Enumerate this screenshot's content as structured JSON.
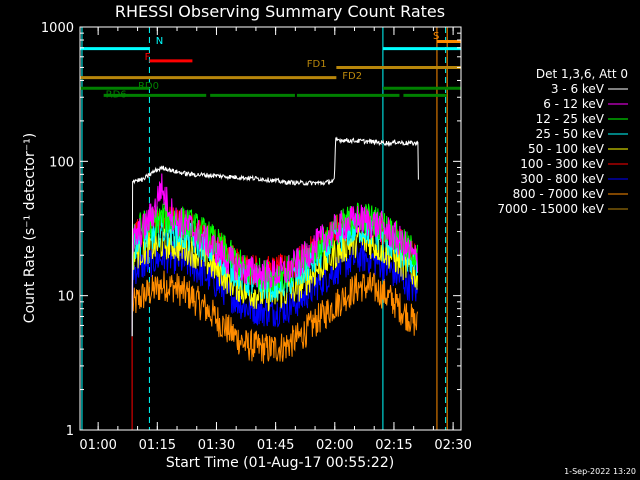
{
  "chart_data": {
    "type": "line",
    "title": "RHESSI Observing Summary Count Rates",
    "xlabel": "Start Time (01-Aug-17 00:55:22)",
    "ylabel": "Count Rate (s⁻¹ detector⁻¹)",
    "x_axis": {
      "unit": "minutes after 01-Aug-17 00:55:22",
      "range": [
        0,
        96.6
      ],
      "ticks": [
        {
          "v": 4.6,
          "label": "01:00"
        },
        {
          "v": 19.6,
          "label": "01:15"
        },
        {
          "v": 34.6,
          "label": "01:30"
        },
        {
          "v": 49.6,
          "label": "01:45"
        },
        {
          "v": 64.6,
          "label": "02:00"
        },
        {
          "v": 79.6,
          "label": "02:15"
        },
        {
          "v": 94.6,
          "label": "02:30"
        }
      ]
    },
    "y_axis": {
      "scale": "log",
      "range": [
        1,
        1000
      ],
      "ticks": [
        {
          "v": 1,
          "label": "1"
        },
        {
          "v": 10,
          "label": "10"
        },
        {
          "v": 100,
          "label": "100"
        },
        {
          "v": 1000,
          "label": "1000"
        }
      ]
    },
    "legend_header": "Det 1,3,6, Att 0",
    "legend_placement": "right",
    "series": [
      {
        "name": "3 - 6 keV",
        "color": "#ffffff",
        "points": [
          [
            13.2,
            5
          ],
          [
            13.3,
            72
          ],
          [
            16,
            73
          ],
          [
            17,
            77
          ],
          [
            19,
            85
          ],
          [
            21,
            90
          ],
          [
            24,
            84
          ],
          [
            28,
            80
          ],
          [
            32,
            79
          ],
          [
            40,
            76
          ],
          [
            46,
            74
          ],
          [
            52,
            70
          ],
          [
            56,
            69
          ],
          [
            62,
            69
          ],
          [
            64.5,
            72
          ],
          [
            64.8,
            145
          ],
          [
            72,
            141
          ],
          [
            78,
            137
          ],
          [
            79,
            136
          ],
          [
            80,
            140
          ],
          [
            82,
            137
          ],
          [
            85.7,
            136
          ],
          [
            85.8,
            76
          ]
        ]
      },
      {
        "name": "6 - 12 keV",
        "color": "#ff00ff",
        "points": [
          [
            13.2,
            5
          ],
          [
            13.4,
            26
          ],
          [
            16,
            31
          ],
          [
            19,
            44
          ],
          [
            20.5,
            66
          ],
          [
            22,
            50
          ],
          [
            24,
            37
          ],
          [
            28,
            32
          ],
          [
            33,
            24
          ],
          [
            38,
            18
          ],
          [
            42,
            15.5
          ],
          [
            48,
            14.2
          ],
          [
            52,
            15
          ],
          [
            56,
            18
          ],
          [
            60,
            24
          ],
          [
            64,
            30
          ],
          [
            68,
            35
          ],
          [
            71,
            37
          ],
          [
            74,
            35
          ],
          [
            77,
            32
          ],
          [
            80,
            27
          ],
          [
            82,
            24
          ],
          [
            85.7,
            18
          ]
        ]
      },
      {
        "name": "12 - 25 keV",
        "color": "#00ff00",
        "points": [
          [
            13.2,
            5
          ],
          [
            13.4,
            30
          ],
          [
            16,
            33
          ],
          [
            19,
            36
          ],
          [
            21,
            38
          ],
          [
            24,
            37
          ],
          [
            28,
            34
          ],
          [
            33,
            27
          ],
          [
            38,
            20
          ],
          [
            42,
            15.5
          ],
          [
            48,
            14
          ],
          [
            52,
            14.8
          ],
          [
            56,
            17.5
          ],
          [
            60,
            23
          ],
          [
            64,
            30
          ],
          [
            68,
            36
          ],
          [
            71,
            39
          ],
          [
            74,
            37
          ],
          [
            77,
            33
          ],
          [
            80,
            28
          ],
          [
            82,
            24
          ],
          [
            85.7,
            20
          ]
        ]
      },
      {
        "name": "25 - 50 keV",
        "color": "#00ffff",
        "points": [
          [
            13.2,
            5
          ],
          [
            13.4,
            24
          ],
          [
            16,
            27
          ],
          [
            19,
            29
          ],
          [
            21,
            31
          ],
          [
            24,
            30
          ],
          [
            28,
            27
          ],
          [
            33,
            22
          ],
          [
            38,
            16.5
          ],
          [
            42,
            13
          ],
          [
            48,
            11.8
          ],
          [
            52,
            12.5
          ],
          [
            56,
            14.5
          ],
          [
            60,
            19
          ],
          [
            64,
            25
          ],
          [
            68,
            30
          ],
          [
            71,
            32
          ],
          [
            74,
            30
          ],
          [
            77,
            27
          ],
          [
            80,
            23
          ],
          [
            82,
            20
          ],
          [
            85.7,
            17
          ]
        ]
      },
      {
        "name": "50 - 100 keV",
        "color": "#ffff00",
        "points": [
          [
            13.2,
            5
          ],
          [
            13.4,
            20
          ],
          [
            16,
            22
          ],
          [
            19,
            23.5
          ],
          [
            21,
            24.5
          ],
          [
            24,
            24
          ],
          [
            28,
            22
          ],
          [
            33,
            17.5
          ],
          [
            38,
            13
          ],
          [
            42,
            10.8
          ],
          [
            48,
            10
          ],
          [
            52,
            10.5
          ],
          [
            56,
            12
          ],
          [
            60,
            15.5
          ],
          [
            64,
            20
          ],
          [
            68,
            24
          ],
          [
            71,
            26
          ],
          [
            74,
            24.5
          ],
          [
            77,
            22
          ],
          [
            80,
            19
          ],
          [
            82,
            17
          ],
          [
            85.7,
            14
          ]
        ]
      },
      {
        "name": "100 - 300 keV",
        "color": "#ff0000",
        "points": [
          [
            13.2,
            5
          ],
          [
            13.4,
            28
          ],
          [
            16,
            31
          ],
          [
            19,
            34
          ],
          [
            21,
            36
          ],
          [
            24,
            35
          ],
          [
            28,
            32
          ],
          [
            33,
            26
          ],
          [
            38,
            19.5
          ],
          [
            42,
            16
          ],
          [
            48,
            15
          ],
          [
            52,
            15.5
          ],
          [
            56,
            18
          ],
          [
            60,
            23
          ],
          [
            64,
            29
          ],
          [
            68,
            34
          ],
          [
            71,
            36
          ],
          [
            74,
            34.5
          ],
          [
            77,
            31
          ],
          [
            80,
            26
          ],
          [
            82,
            23
          ],
          [
            85.7,
            19
          ]
        ]
      },
      {
        "name": "300 - 800 keV",
        "color": "#0000ff",
        "points": [
          [
            13.2,
            5
          ],
          [
            13.4,
            15.5
          ],
          [
            16,
            17
          ],
          [
            19,
            18.5
          ],
          [
            21,
            19.5
          ],
          [
            24,
            19
          ],
          [
            28,
            17
          ],
          [
            33,
            13.5
          ],
          [
            38,
            10.2
          ],
          [
            42,
            8.2
          ],
          [
            48,
            7.6
          ],
          [
            52,
            8
          ],
          [
            56,
            9.4
          ],
          [
            60,
            12
          ],
          [
            64,
            15
          ],
          [
            68,
            18
          ],
          [
            71,
            19.5
          ],
          [
            74,
            18.8
          ],
          [
            77,
            17
          ],
          [
            80,
            14.5
          ],
          [
            82,
            13
          ],
          [
            85.7,
            10.5
          ]
        ]
      },
      {
        "name": "800 - 7000 keV",
        "color": "#ff8c00",
        "points": [
          [
            13.2,
            5
          ],
          [
            13.4,
            8.5
          ],
          [
            16,
            10
          ],
          [
            19,
            11.2
          ],
          [
            21,
            12
          ],
          [
            24,
            11.6
          ],
          [
            28,
            10
          ],
          [
            33,
            7.5
          ],
          [
            38,
            5.4
          ],
          [
            42,
            4.3
          ],
          [
            48,
            4
          ],
          [
            52,
            4.2
          ],
          [
            56,
            5
          ],
          [
            60,
            6.5
          ],
          [
            64,
            8.2
          ],
          [
            68,
            10.4
          ],
          [
            71,
            11.8
          ],
          [
            74,
            11.5
          ],
          [
            77,
            10.4
          ],
          [
            80,
            8.8
          ],
          [
            82,
            7.6
          ],
          [
            85.7,
            6
          ]
        ]
      },
      {
        "name": "7000 - 15000 keV",
        "color": "#b8860b",
        "points": []
      }
    ],
    "extra_traces": [
      {
        "color": "#ff0000",
        "points": [
          [
            13.2,
            1
          ],
          [
            13.2,
            5
          ]
        ]
      }
    ],
    "vertical_lines": [
      {
        "x": 0.5,
        "color": "#00ffff",
        "style": "solid"
      },
      {
        "x": 17.6,
        "color": "#00ffff",
        "style": "dashed"
      },
      {
        "x": 76.8,
        "color": "#00ffff",
        "style": "solid"
      },
      {
        "x": 90.5,
        "color": "#ff8c00",
        "style": "solid"
      },
      {
        "x": 92.7,
        "color": "#00ffff",
        "style": "dashed"
      },
      {
        "x": 93.1,
        "color": "#ff8c00",
        "style": "solid"
      }
    ],
    "state_bars": [
      {
        "label": "N",
        "color": "#00ffff",
        "label_color": "#00ffff",
        "label_x": 19.2,
        "label_y": 800,
        "segments": [
          [
            0,
            17.6
          ],
          [
            76.8,
            96.6
          ]
        ],
        "y": 690
      },
      {
        "label": "S",
        "color": "#ff8c00",
        "label_color": "#ff8c00",
        "label_x": 89.5,
        "label_y": 870,
        "segments": [
          [
            90.5,
            96.6
          ]
        ],
        "y": 780
      },
      {
        "label": "F",
        "color": "#ff0000",
        "label_color": "#ff0000",
        "label_x": 16.4,
        "label_y": 610,
        "segments": [
          [
            17.6,
            28.5
          ]
        ],
        "y": 560
      },
      {
        "label": "FD1",
        "color": "#b8860b",
        "label_color": "#b8860b",
        "label_x": 57.5,
        "label_y": 540,
        "segments": [
          [
            65,
            96.6
          ]
        ],
        "y": 500
      },
      {
        "label": "FD2",
        "color": "#b8860b",
        "label_color": "#b8860b",
        "label_x": 66.5,
        "label_y": 440,
        "segments": [
          [
            0,
            65
          ]
        ],
        "y": 420
      },
      {
        "label": "RD0",
        "color": "#008000",
        "label_color": "#008000",
        "label_x": 14.7,
        "label_y": 370,
        "segments": [
          [
            0,
            17.6
          ],
          [
            76.8,
            96.6
          ]
        ],
        "y": 350
      },
      {
        "label": "RD6",
        "color": "#008000",
        "label_color": "#008000",
        "label_x": 6.5,
        "label_y": 320,
        "segments": [
          [
            6,
            32
          ],
          [
            33,
            54.5
          ],
          [
            55,
            81
          ],
          [
            82,
            93
          ]
        ],
        "y": 310
      }
    ]
  },
  "footer": {
    "date": "1-Sep-2022 13:20"
  }
}
